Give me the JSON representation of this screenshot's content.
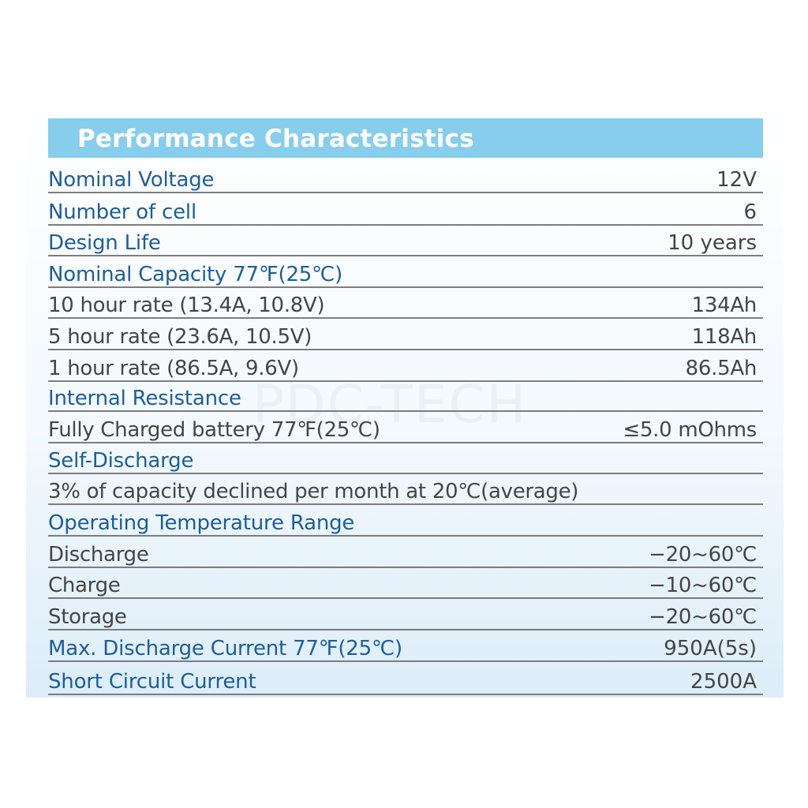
{
  "header": {
    "title": "Performance Characteristics"
  },
  "watermark": "PDC-TECH",
  "rows": [
    {
      "label": "Nominal Voltage",
      "value": "12V"
    },
    {
      "label": "Number of cell",
      "value": "6"
    },
    {
      "label": "Design Life",
      "value": "10 years"
    },
    {
      "label": "Nominal Capacity 77℉(25℃)",
      "value": ""
    },
    {
      "label": "10 hour rate (13.4A, 10.8V)",
      "value": "134Ah"
    },
    {
      "label": "5 hour rate (23.6A, 10.5V)",
      "value": "118Ah"
    },
    {
      "label": "1 hour rate (86.5A, 9.6V)",
      "value": "86.5Ah"
    },
    {
      "label": "Internal Resistance",
      "value": ""
    },
    {
      "label": "Fully Charged battery 77℉(25℃)",
      "value": "≤5.0 mOhms"
    },
    {
      "label": "Self-Discharge",
      "value": ""
    },
    {
      "label": "3% of capacity declined per month at 20℃(average)",
      "value": ""
    },
    {
      "label": "Operating Temperature Range",
      "value": ""
    },
    {
      "label": "Discharge",
      "value": "−20~60℃"
    },
    {
      "label": "Charge",
      "value": "−10~60℃"
    },
    {
      "label": "Storage",
      "value": "−20~60℃"
    },
    {
      "label": "Max. Discharge Current 77℉(25℃)",
      "value": "950A(5s)"
    },
    {
      "label": "Short Circuit Current",
      "value": "2500A"
    }
  ]
}
